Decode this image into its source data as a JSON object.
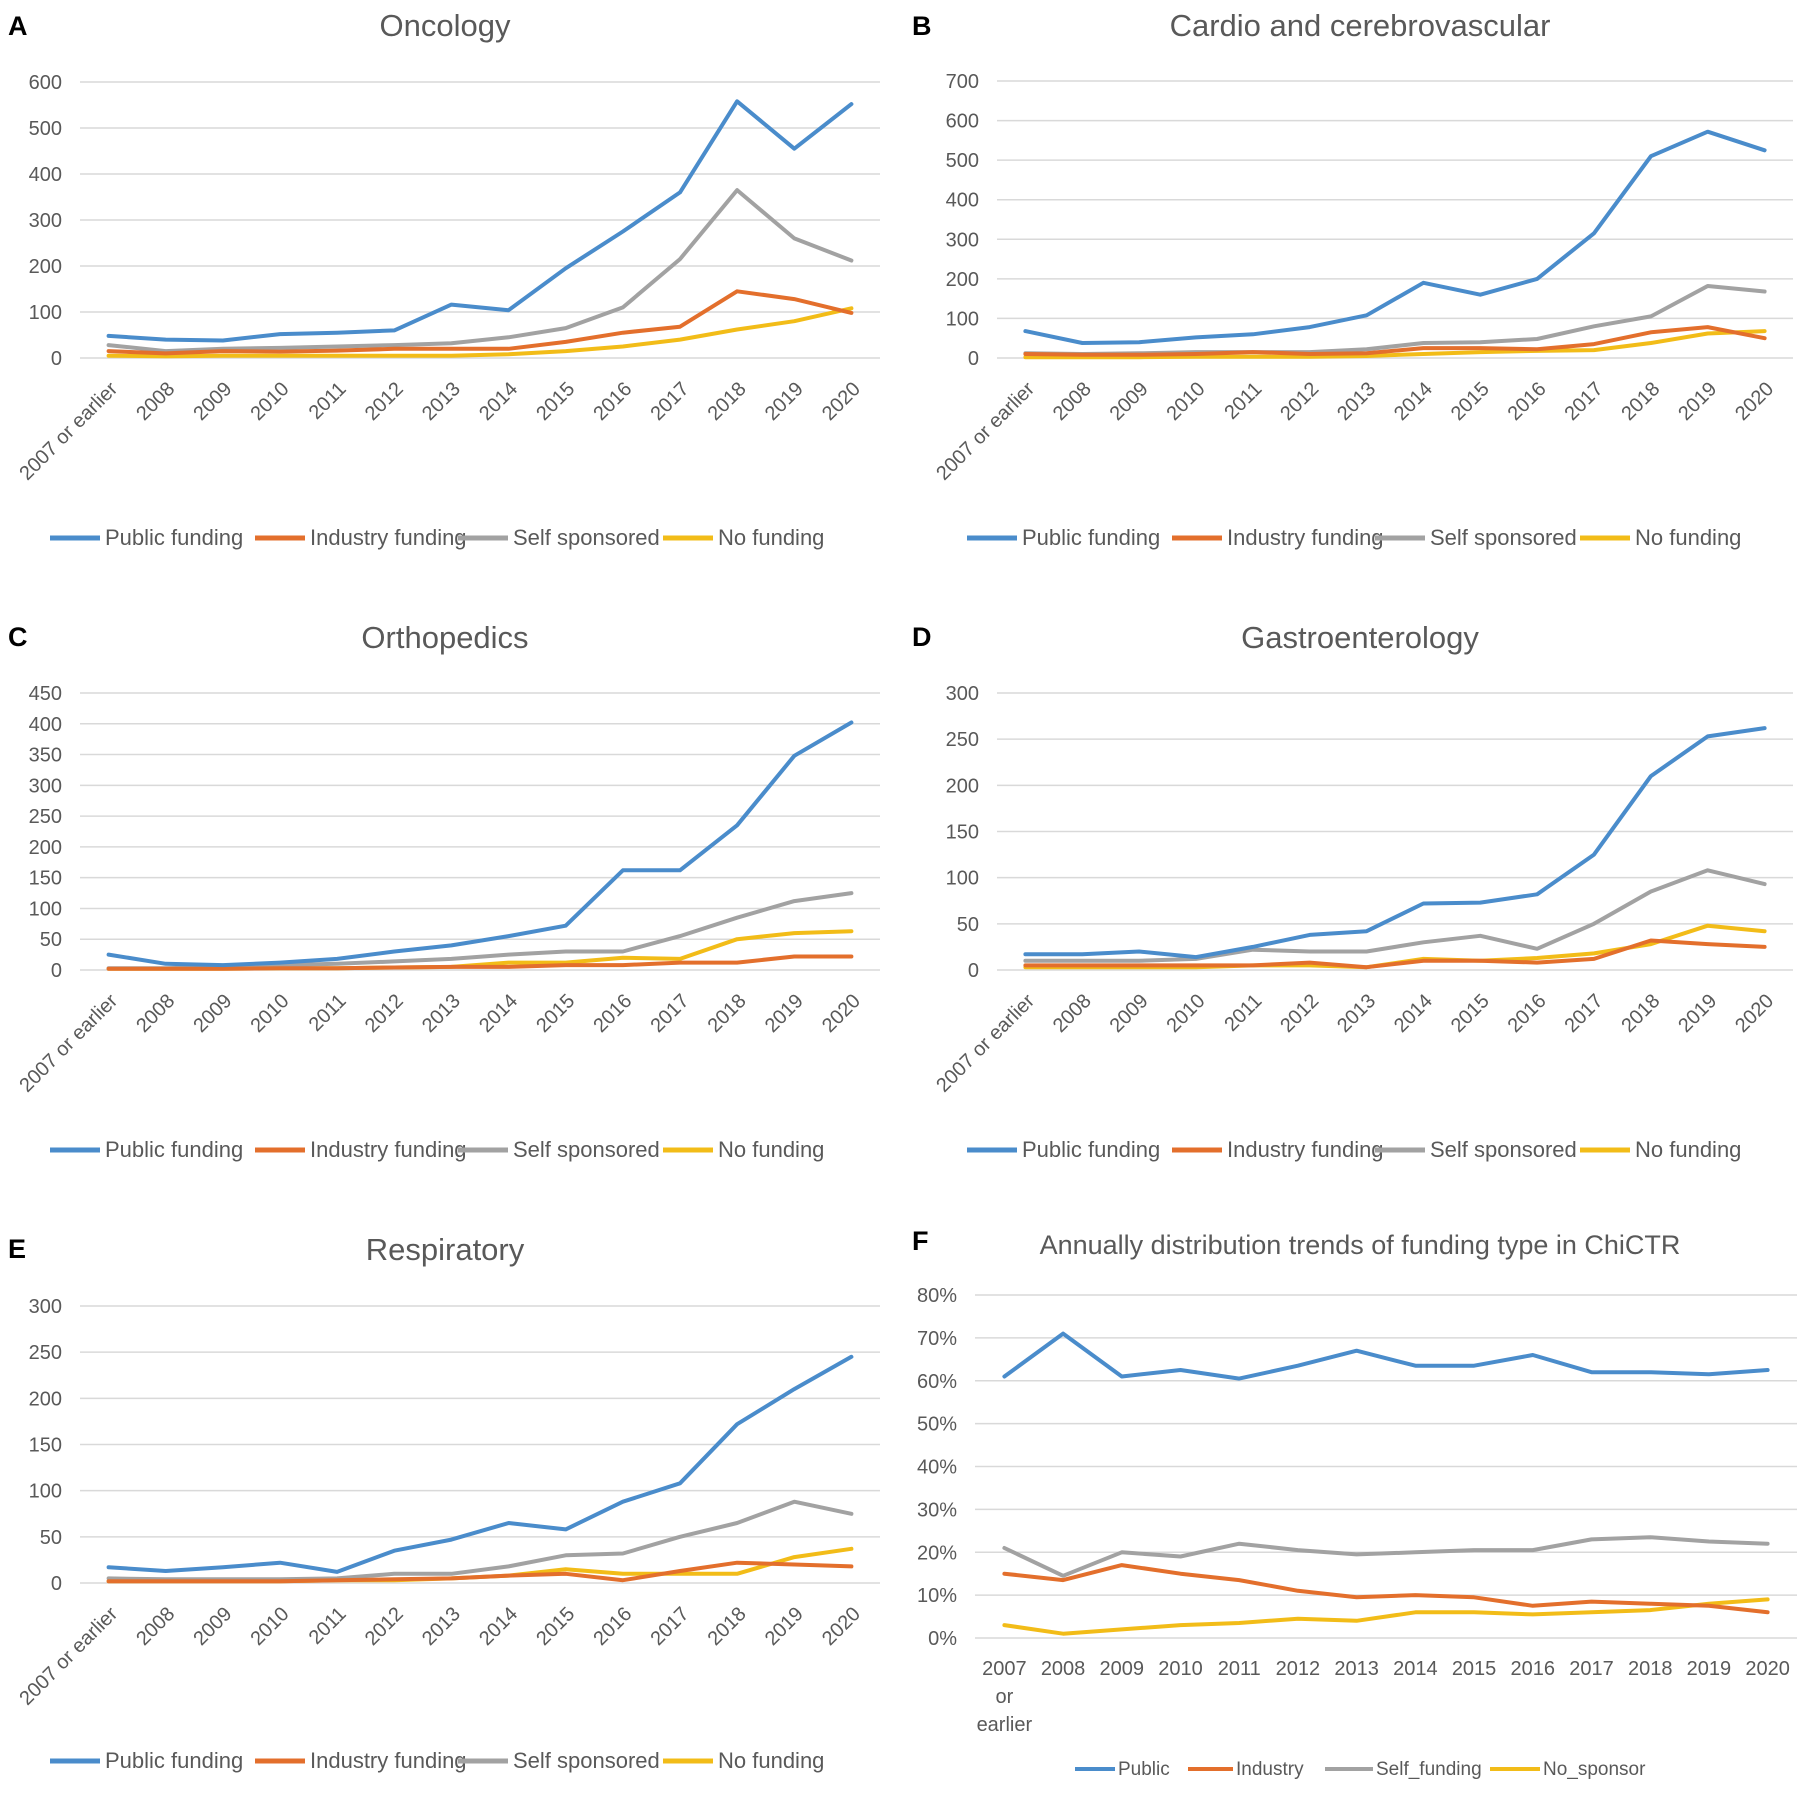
{
  "figure_colors": {
    "Public funding": "#4a8ccb",
    "Industry funding": "#e36f2c",
    "Self sponsored": "#a2a2a2",
    "No funding": "#f2bc18",
    "Public": "#4a8ccb",
    "Industry": "#e36f2c",
    "Self_funding": "#a2a2a2",
    "No_sponsor": "#f2bc18",
    "gridline": "#d9d9d9",
    "text": "#595959"
  },
  "chart_data": [
    {
      "panel": "A",
      "type": "line",
      "title": "Oncology",
      "xlabel": "",
      "ylabel": "",
      "ylim": [
        0,
        600
      ],
      "yticks": [
        "0",
        "100",
        "200",
        "300",
        "400",
        "500",
        "600"
      ],
      "categories": [
        "2007 or earlier",
        "2008",
        "2009",
        "2010",
        "2011",
        "2012",
        "2013",
        "2014",
        "2015",
        "2016",
        "2017",
        "2018",
        "2019",
        "2020"
      ],
      "grid": true,
      "legend": "bottom",
      "series": [
        {
          "name": "Public funding",
          "values": [
            48,
            40,
            38,
            52,
            55,
            60,
            116,
            104,
            195,
            275,
            360,
            558,
            455,
            552
          ]
        },
        {
          "name": "Industry funding",
          "values": [
            15,
            10,
            15,
            14,
            16,
            20,
            20,
            20,
            35,
            55,
            68,
            145,
            128,
            98
          ]
        },
        {
          "name": "Self sponsored",
          "values": [
            28,
            15,
            20,
            22,
            25,
            28,
            32,
            45,
            65,
            110,
            215,
            365,
            260,
            212
          ]
        },
        {
          "name": "No funding",
          "values": [
            5,
            4,
            5,
            5,
            5,
            5,
            5,
            8,
            15,
            25,
            40,
            62,
            80,
            108
          ]
        }
      ]
    },
    {
      "panel": "B",
      "type": "line",
      "title": "Cardio and cerebrovascular",
      "xlabel": "",
      "ylabel": "",
      "ylim": [
        0,
        700
      ],
      "yticks": [
        "0",
        "100",
        "200",
        "300",
        "400",
        "500",
        "600",
        "700"
      ],
      "categories": [
        "2007 or earlier",
        "2008",
        "2009",
        "2010",
        "2011",
        "2012",
        "2013",
        "2014",
        "2015",
        "2016",
        "2017",
        "2018",
        "2019",
        "2020"
      ],
      "grid": true,
      "legend": "bottom",
      "series": [
        {
          "name": "Public funding",
          "values": [
            68,
            38,
            40,
            52,
            60,
            78,
            108,
            190,
            160,
            200,
            315,
            510,
            572,
            525
          ]
        },
        {
          "name": "Industry funding",
          "values": [
            10,
            8,
            8,
            10,
            15,
            10,
            12,
            25,
            25,
            22,
            35,
            65,
            78,
            50
          ]
        },
        {
          "name": "Self sponsored",
          "values": [
            12,
            10,
            12,
            15,
            15,
            15,
            22,
            38,
            40,
            48,
            80,
            105,
            182,
            168
          ]
        },
        {
          "name": "No funding",
          "values": [
            2,
            2,
            2,
            3,
            3,
            3,
            5,
            10,
            15,
            18,
            20,
            38,
            62,
            68
          ]
        }
      ]
    },
    {
      "panel": "C",
      "type": "line",
      "title": "Orthopedics",
      "xlabel": "",
      "ylabel": "",
      "ylim": [
        0,
        450
      ],
      "yticks": [
        "0",
        "50",
        "100",
        "150",
        "200",
        "250",
        "300",
        "350",
        "400",
        "450"
      ],
      "categories": [
        "2007 or earlier",
        "2008",
        "2009",
        "2010",
        "2011",
        "2012",
        "2013",
        "2014",
        "2015",
        "2016",
        "2017",
        "2018",
        "2019",
        "2020"
      ],
      "grid": true,
      "legend": "bottom",
      "series": [
        {
          "name": "Public funding",
          "values": [
            25,
            10,
            8,
            12,
            18,
            30,
            40,
            55,
            72,
            162,
            162,
            235,
            348,
            402
          ]
        },
        {
          "name": "Industry funding",
          "values": [
            2,
            2,
            2,
            3,
            3,
            4,
            5,
            5,
            8,
            8,
            12,
            12,
            22,
            22
          ]
        },
        {
          "name": "Self sponsored",
          "values": [
            3,
            3,
            5,
            8,
            10,
            14,
            18,
            25,
            30,
            30,
            55,
            85,
            112,
            125
          ]
        },
        {
          "name": "No funding",
          "values": [
            2,
            2,
            2,
            3,
            3,
            4,
            5,
            12,
            12,
            20,
            18,
            50,
            60,
            63
          ]
        }
      ]
    },
    {
      "panel": "D",
      "type": "line",
      "title": "Gastroenterology",
      "xlabel": "",
      "ylabel": "",
      "ylim": [
        0,
        300
      ],
      "yticks": [
        "0",
        "50",
        "100",
        "150",
        "200",
        "250",
        "300"
      ],
      "categories": [
        "2007 or earlier",
        "2008",
        "2009",
        "2010",
        "2011",
        "2012",
        "2013",
        "2014",
        "2015",
        "2016",
        "2017",
        "2018",
        "2019",
        "2020"
      ],
      "grid": true,
      "legend": "bottom",
      "series": [
        {
          "name": "Public funding",
          "values": [
            17,
            17,
            20,
            14,
            25,
            38,
            42,
            72,
            73,
            82,
            125,
            210,
            253,
            262
          ]
        },
        {
          "name": "Industry funding",
          "values": [
            5,
            5,
            5,
            5,
            5,
            8,
            3,
            10,
            10,
            8,
            12,
            32,
            28,
            25
          ]
        },
        {
          "name": "Self sponsored",
          "values": [
            10,
            10,
            10,
            12,
            22,
            20,
            20,
            30,
            37,
            23,
            50,
            85,
            108,
            93
          ]
        },
        {
          "name": "No funding",
          "values": [
            3,
            3,
            3,
            3,
            5,
            5,
            3,
            12,
            10,
            13,
            18,
            28,
            48,
            42
          ]
        }
      ]
    },
    {
      "panel": "E",
      "type": "line",
      "title": "Respiratory",
      "xlabel": "",
      "ylabel": "",
      "ylim": [
        0,
        300
      ],
      "yticks": [
        "0",
        "50",
        "100",
        "150",
        "200",
        "250",
        "300"
      ],
      "categories": [
        "2007 or earlier",
        "2008",
        "2009",
        "2010",
        "2011",
        "2012",
        "2013",
        "2014",
        "2015",
        "2016",
        "2017",
        "2018",
        "2019",
        "2020"
      ],
      "grid": true,
      "legend": "bottom",
      "series": [
        {
          "name": "Public funding",
          "values": [
            17,
            13,
            17,
            22,
            12,
            35,
            47,
            65,
            58,
            88,
            108,
            172,
            210,
            245
          ]
        },
        {
          "name": "Industry funding",
          "values": [
            2,
            2,
            2,
            2,
            3,
            4,
            5,
            8,
            10,
            3,
            13,
            22,
            20,
            18
          ]
        },
        {
          "name": "Self sponsored",
          "values": [
            5,
            4,
            4,
            4,
            5,
            10,
            10,
            18,
            30,
            32,
            50,
            65,
            88,
            75
          ]
        },
        {
          "name": "No funding",
          "values": [
            2,
            2,
            2,
            2,
            3,
            3,
            5,
            8,
            15,
            10,
            10,
            10,
            28,
            37
          ]
        }
      ]
    },
    {
      "panel": "F",
      "type": "line",
      "title": "Annually distribution trends of funding type in ChiCTR",
      "xlabel": "",
      "ylabel": "",
      "ylim": [
        0,
        80
      ],
      "yticks": [
        "0%",
        "10%",
        "20%",
        "30%",
        "40%",
        "50%",
        "60%",
        "70%",
        "80%"
      ],
      "categories": [
        "2007\nor\nearlier",
        "2008",
        "2009",
        "2010",
        "2011",
        "2012",
        "2013",
        "2014",
        "2015",
        "2016",
        "2017",
        "2018",
        "2019",
        "2020"
      ],
      "grid": true,
      "legend": "bottom",
      "series": [
        {
          "name": "Public",
          "values": [
            61,
            71,
            61,
            62.5,
            60.5,
            63.5,
            67,
            63.5,
            63.5,
            66,
            62,
            62,
            61.5,
            62.5
          ]
        },
        {
          "name": "Industry",
          "values": [
            15,
            13.5,
            17,
            15,
            13.5,
            11,
            9.5,
            10,
            9.5,
            7.5,
            8.5,
            8,
            7.5,
            6
          ]
        },
        {
          "name": "Self_funding",
          "values": [
            21,
            14.5,
            20,
            19,
            22,
            20.5,
            19.5,
            20,
            20.5,
            20.5,
            23,
            23.5,
            22.5,
            22
          ]
        },
        {
          "name": "No_sponsor",
          "values": [
            3,
            1,
            2,
            3,
            3.5,
            4.5,
            4,
            6,
            6,
            5.5,
            6,
            6.5,
            8,
            9
          ]
        }
      ]
    }
  ]
}
